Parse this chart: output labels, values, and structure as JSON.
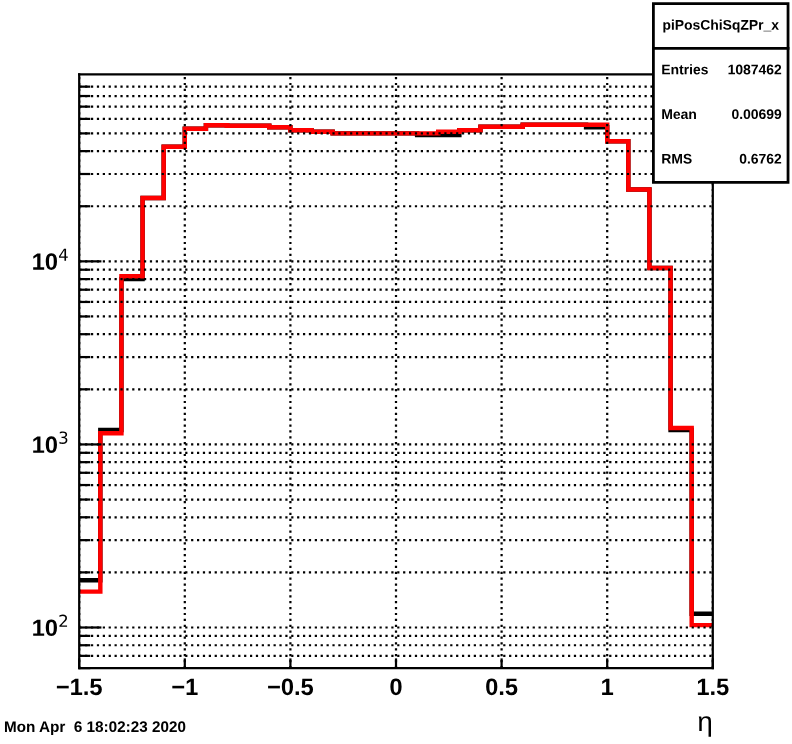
{
  "chart_data": {
    "type": "histogram",
    "xlabel": "η",
    "log": "y",
    "grid": true,
    "bins": [
      -1.5,
      -1.4,
      -1.3,
      -1.2,
      -1.1,
      -1.0,
      -0.9,
      -0.8,
      -0.7,
      -0.6,
      -0.5,
      -0.4,
      -0.3,
      -0.2,
      -0.1,
      0.0,
      0.1,
      0.2,
      0.3,
      0.4,
      0.5,
      0.6,
      0.7,
      0.8,
      0.9,
      1.0,
      1.1,
      1.2,
      1.3,
      1.4,
      1.5
    ],
    "series": [
      {
        "color": "#000000",
        "values": [
          181,
          1200,
          8000,
          22200,
          42300,
          53000,
          55400,
          55000,
          55000,
          54000,
          52000,
          51000,
          50000,
          50000,
          50000,
          50000,
          49000,
          49000,
          52000,
          54300,
          54300,
          55700,
          55700,
          55700,
          54000,
          45300,
          24700,
          9200,
          1200,
          119
        ]
      },
      {
        "color": "#ff0000",
        "values": [
          157,
          1150,
          8300,
          22200,
          42300,
          53000,
          55400,
          55000,
          55000,
          54000,
          52000,
          51000,
          50000,
          50000,
          50000,
          50000,
          50000,
          51000,
          52000,
          54300,
          54300,
          55700,
          55700,
          55700,
          55700,
          45300,
          24700,
          9200,
          1230,
          103
        ]
      }
    ],
    "xlim": [
      -1.5,
      1.5
    ],
    "ylim": [
      60,
      105000
    ],
    "xticks": [
      -1.5,
      -1,
      -0.5,
      0,
      0.5,
      1,
      1.5
    ],
    "yticks": [
      {
        "value": 60,
        "label": null
      },
      {
        "value": 70,
        "label": null
      },
      {
        "value": 80,
        "label": null
      },
      {
        "value": 90,
        "label": null
      },
      {
        "value": 100,
        "label": "10$^{2}$"
      },
      {
        "value": 200,
        "label": null
      },
      {
        "value": 300,
        "label": null
      },
      {
        "value": 400,
        "label": null
      },
      {
        "value": 500,
        "label": null
      },
      {
        "value": 600,
        "label": null
      },
      {
        "value": 700,
        "label": null
      },
      {
        "value": 800,
        "label": null
      },
      {
        "value": 900,
        "label": null
      },
      {
        "value": 1000,
        "label": "10$^{3}$"
      },
      {
        "value": 2000,
        "label": null
      },
      {
        "value": 3000,
        "label": null
      },
      {
        "value": 4000,
        "label": null
      },
      {
        "value": 5000,
        "label": null
      },
      {
        "value": 6000,
        "label": null
      },
      {
        "value": 7000,
        "label": null
      },
      {
        "value": 8000,
        "label": null
      },
      {
        "value": 9000,
        "label": null
      },
      {
        "value": 10000,
        "label": "10$^{4}$"
      },
      {
        "value": 20000,
        "label": null
      },
      {
        "value": 30000,
        "label": null
      },
      {
        "value": 40000,
        "label": null
      },
      {
        "value": 50000,
        "label": null
      },
      {
        "value": 60000,
        "label": null
      },
      {
        "value": 70000,
        "label": null
      },
      {
        "value": 80000,
        "label": null
      },
      {
        "value": 90000,
        "label": null
      }
    ],
    "annotations": [
      "piPosChiSqZPr_x",
      "Entries 1087462",
      "Mean 0.00699",
      "RMS 0.6762",
      "Mon Apr  6 18:02:23 2020"
    ]
  }
}
